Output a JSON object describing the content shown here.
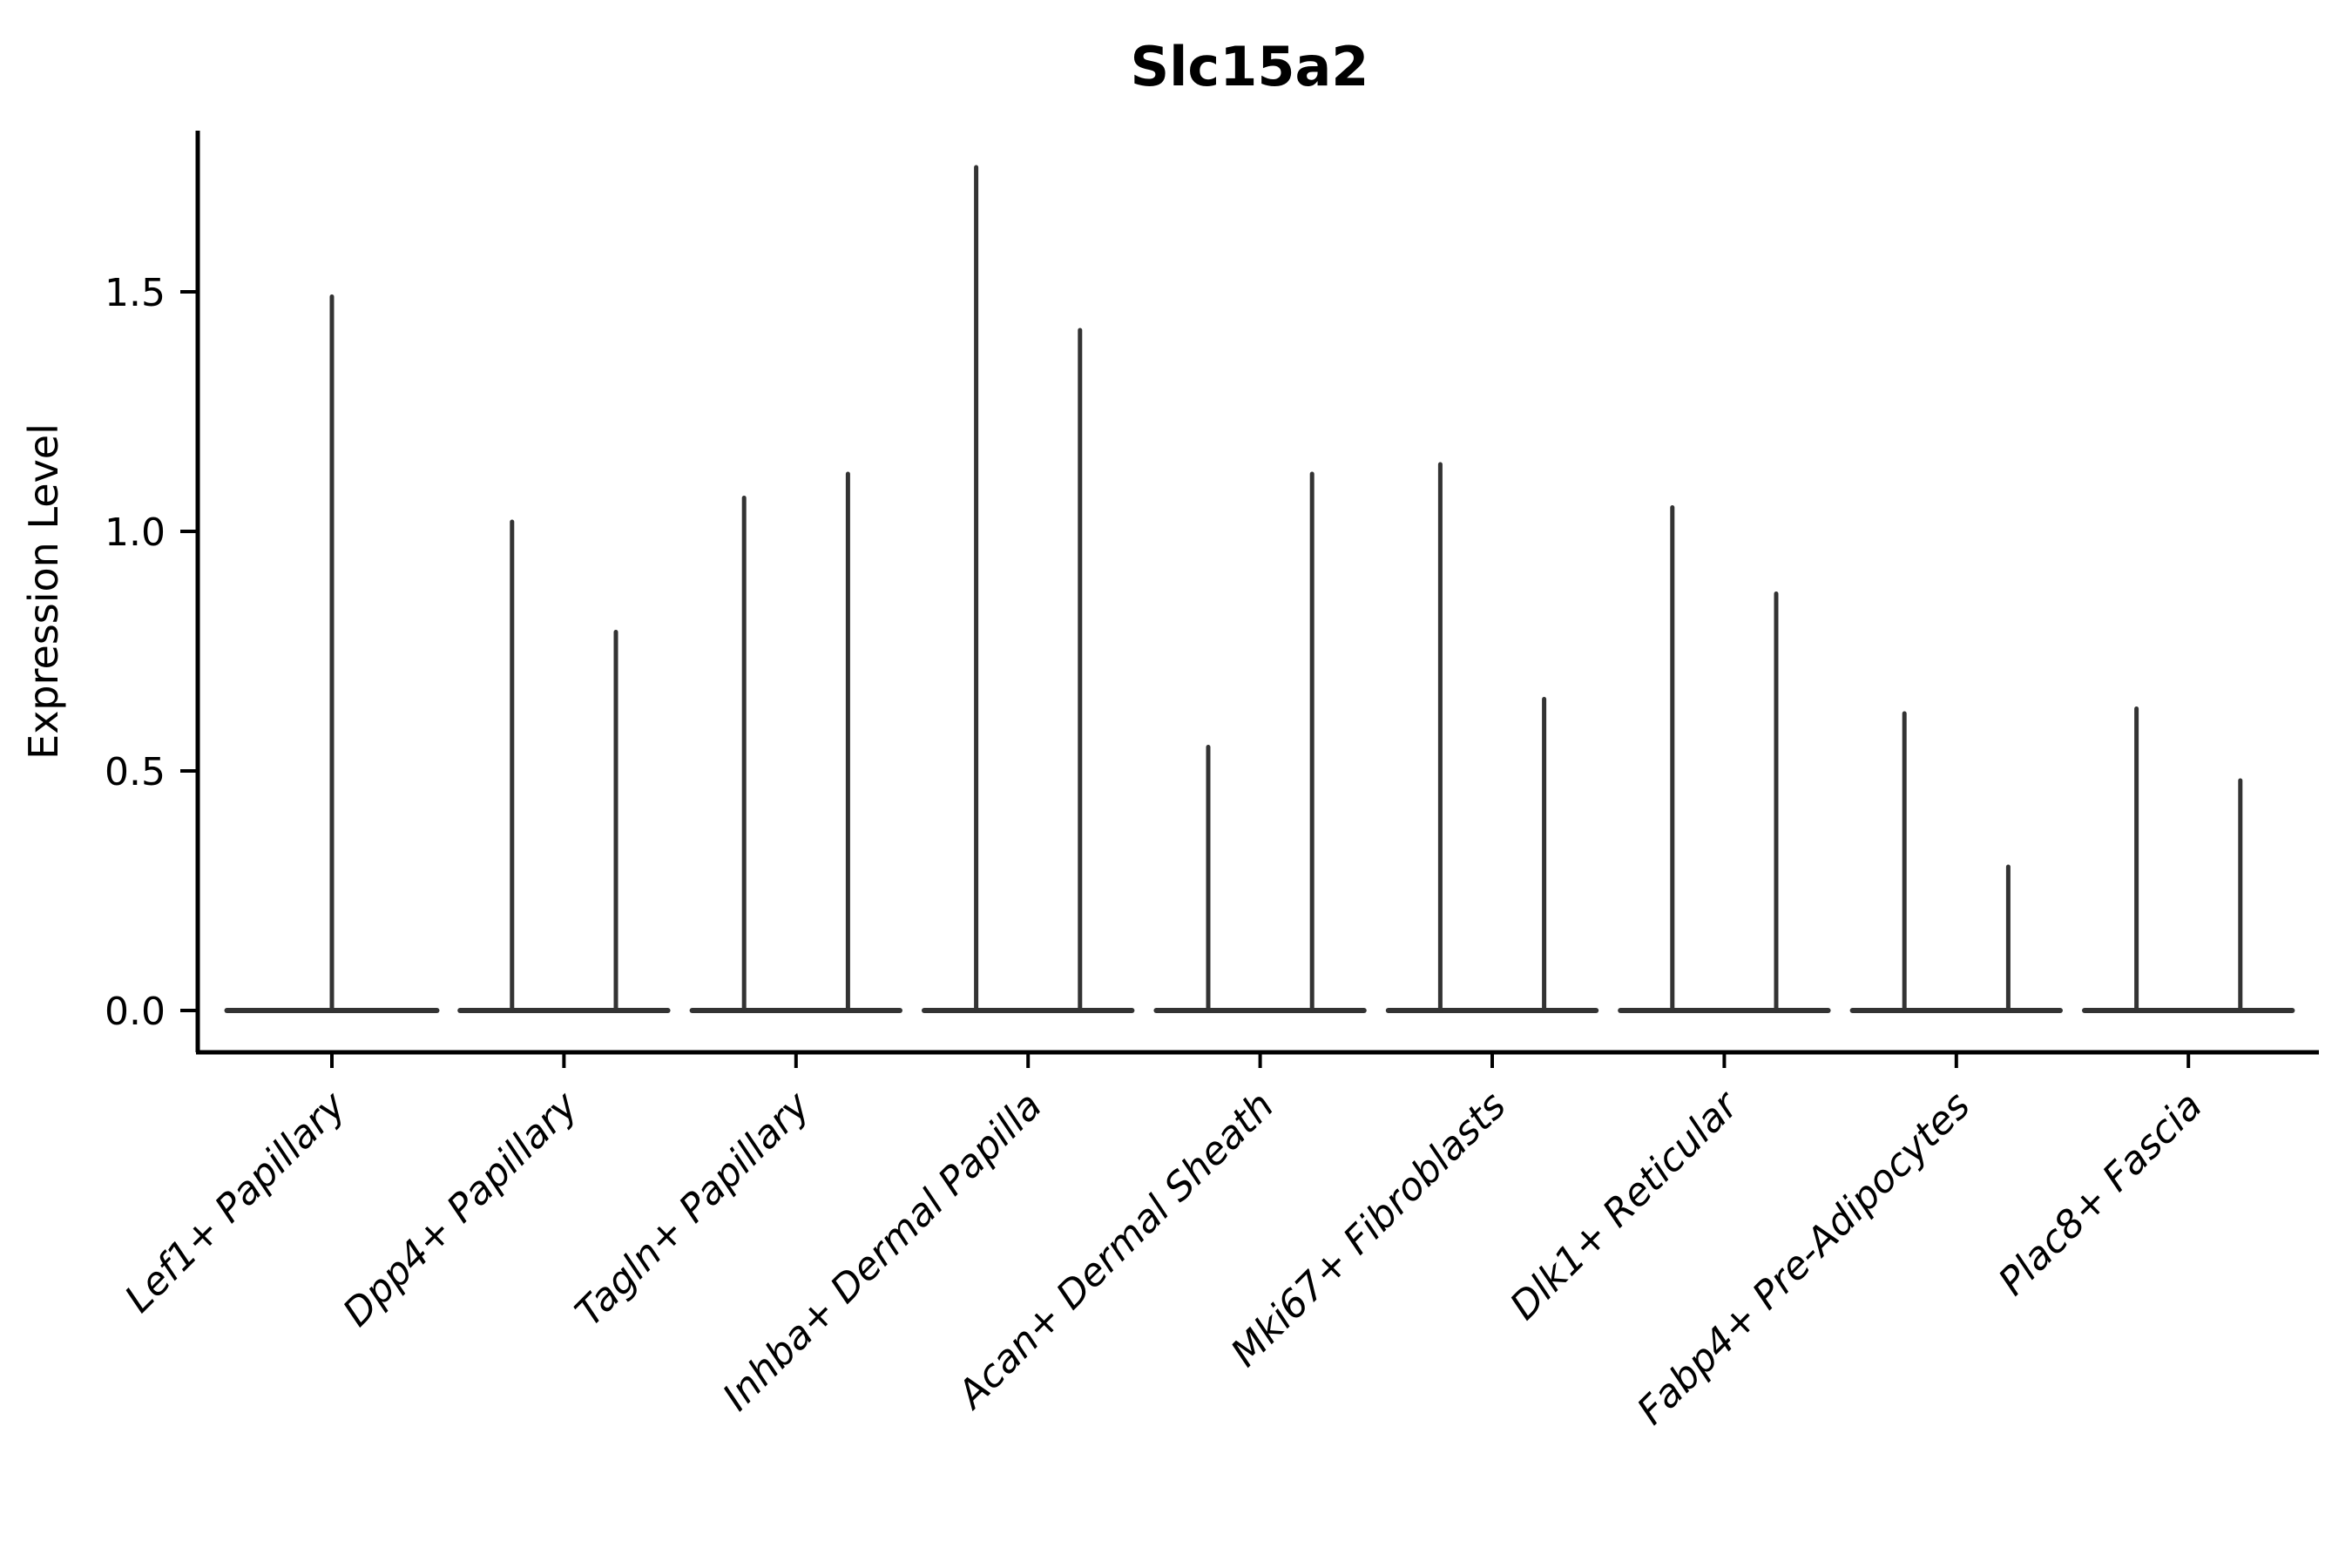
{
  "title": "Slc15a2",
  "chart_data": {
    "type": "violin",
    "title": "Slc15a2",
    "xlabel": "",
    "ylabel": "Expression Level",
    "ylim": [
      -0.09,
      1.84
    ],
    "yticks": [
      0.0,
      0.5,
      1.0,
      1.5
    ],
    "ytick_labels": [
      "0.0",
      "0.5",
      "1.0",
      "1.5"
    ],
    "grid": false,
    "legend_position": "none",
    "x_tick_rotation_deg": 45,
    "style_note": "thin violins: wide flat base at expression 0 with a single thin tail rising to the max expression value",
    "violin_line_color": "#333333",
    "spine_color": "#000000",
    "categories": [
      "Lef1+ Papillary",
      "Dpp4+ Papillary",
      "Tagln+ Papillary",
      "Inhba+ Dermal Papilla",
      "Acan+ Dermal Sheath",
      "Mki67+ Fibroblasts",
      "Dlk1+ Reticular",
      "Fabp4+ Pre-Adipocytes",
      "Plac8+ Fascia"
    ],
    "violins": [
      {
        "category": "Lef1+ Papillary",
        "tails": [
          1.49
        ]
      },
      {
        "category": "Dpp4+ Papillary",
        "tails": [
          1.02,
          0.79
        ]
      },
      {
        "category": "Tagln+ Papillary",
        "tails": [
          1.07,
          1.12
        ]
      },
      {
        "category": "Inhba+ Dermal Papilla",
        "tails": [
          1.76,
          1.42
        ]
      },
      {
        "category": "Acan+ Dermal Sheath",
        "tails": [
          0.55,
          1.12
        ]
      },
      {
        "category": "Mki67+ Fibroblasts",
        "tails": [
          1.14,
          0.65
        ]
      },
      {
        "category": "Dlk1+ Reticular",
        "tails": [
          1.05,
          0.87
        ]
      },
      {
        "category": "Fabp4+ Pre-Adipocytes",
        "tails": [
          0.62,
          0.3
        ]
      },
      {
        "category": "Plac8+ Fascia",
        "tails": [
          0.63,
          0.48
        ]
      }
    ]
  }
}
